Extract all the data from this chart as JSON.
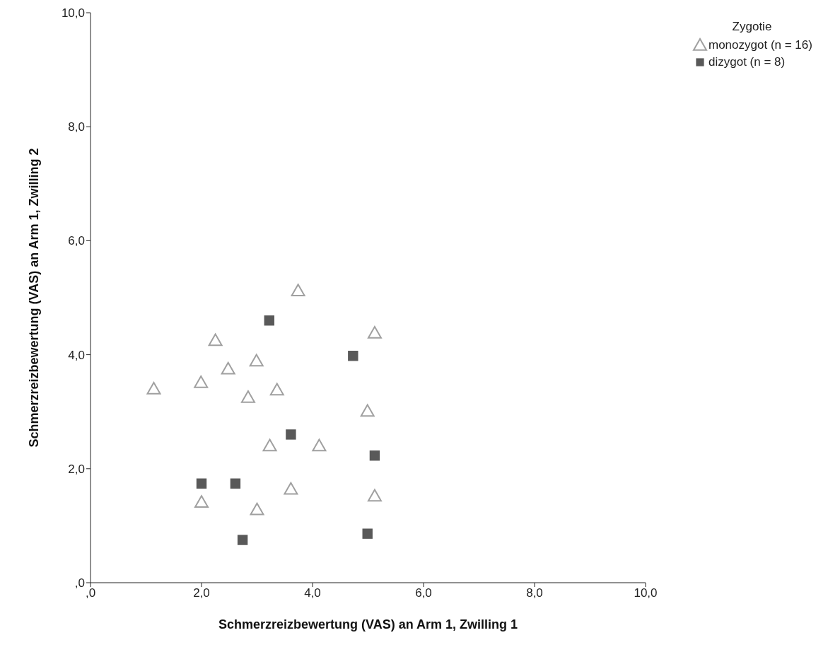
{
  "chart_data": {
    "type": "scatter",
    "xlabel": "Schmerzreizbewertung (VAS) an Arm 1, Zwilling 1",
    "ylabel": "Schmerzreizbewertung (VAS) an Arm 1, Zwilling 2",
    "legend_title": "Zygotie",
    "legend": "top right",
    "grid": false,
    "xlim": [
      0,
      10
    ],
    "ylim": [
      0,
      10
    ],
    "xticks": [
      {
        "value": 0,
        "label": ",0"
      },
      {
        "value": 2,
        "label": "2,0"
      },
      {
        "value": 4,
        "label": "4,0"
      },
      {
        "value": 6,
        "label": "6,0"
      },
      {
        "value": 8,
        "label": "8,0"
      },
      {
        "value": 10,
        "label": "10,0"
      }
    ],
    "yticks": [
      {
        "value": 0,
        "label": ",0"
      },
      {
        "value": 2,
        "label": "2,0"
      },
      {
        "value": 4,
        "label": "4,0"
      },
      {
        "value": 6,
        "label": "6,0"
      },
      {
        "value": 8,
        "label": "8,0"
      },
      {
        "value": 10,
        "label": "10,0"
      }
    ],
    "series": [
      {
        "name": "monozygot (n = 16)",
        "color": "#a0a0a0",
        "marker": "triangle",
        "x": [
          1.14,
          1.99,
          2.25,
          2.48,
          2.99,
          2.84,
          3.36,
          3.74,
          5.12,
          4.99,
          3.23,
          4.12,
          3.61,
          3.0,
          2.0,
          5.12
        ],
        "values": [
          3.4,
          3.51,
          4.25,
          3.75,
          3.89,
          3.25,
          3.38,
          5.12,
          4.38,
          3.01,
          2.4,
          2.4,
          1.64,
          1.28,
          1.41,
          1.52
        ]
      },
      {
        "name": "dizygot (n = 8)",
        "color": "#595959",
        "marker": "square",
        "x": [
          3.22,
          4.73,
          3.61,
          5.12,
          2.0,
          2.61,
          2.74,
          4.99
        ],
        "values": [
          4.6,
          3.98,
          2.6,
          2.23,
          1.74,
          1.74,
          0.75,
          0.86
        ]
      }
    ]
  }
}
